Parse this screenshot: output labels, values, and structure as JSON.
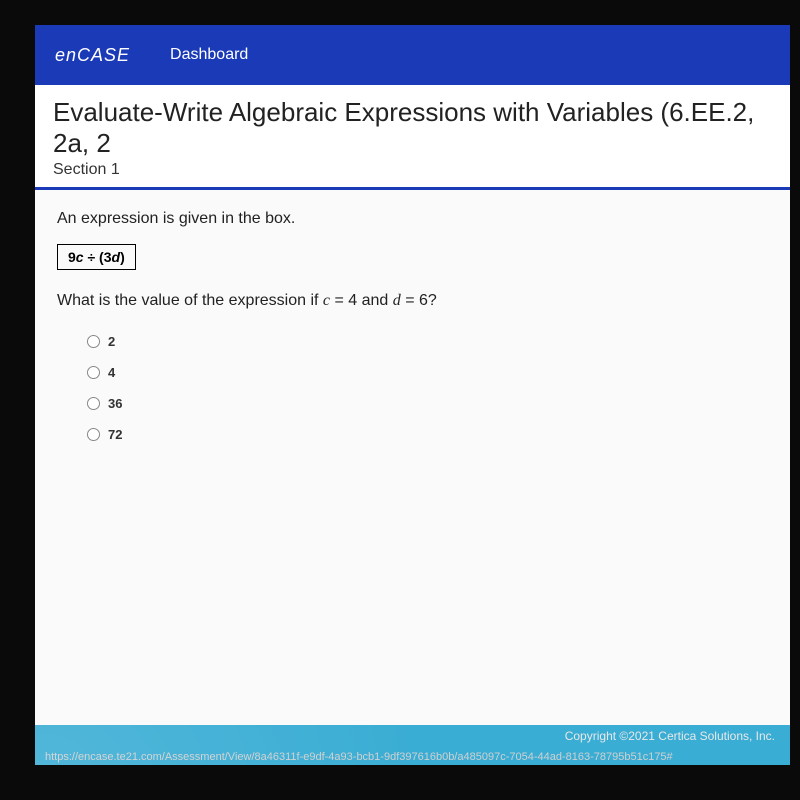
{
  "header": {
    "logo": "enCASE",
    "nav": "Dashboard"
  },
  "title": {
    "main": "Evaluate-Write Algebraic Expressions with Variables (6.EE.2, 2a, 2",
    "section": "Section 1"
  },
  "question": {
    "prompt": "An expression is given in the box.",
    "expression_prefix": "9",
    "expression_var1": "c",
    "expression_op": " ÷ (3",
    "expression_var2": "d",
    "expression_suffix": ")",
    "stem_prefix": "What is the value of the expression if ",
    "stem_c": "c",
    "stem_eq1": " = 4",
    "stem_and": " and ",
    "stem_d": "d",
    "stem_eq2": " = 6",
    "stem_suffix": "?"
  },
  "options": [
    {
      "label": "2"
    },
    {
      "label": "4"
    },
    {
      "label": "36"
    },
    {
      "label": "72"
    }
  ],
  "footer": {
    "copyright": "Copyright ©2021 Certica Solutions, Inc.",
    "url": "https://encase.te21.com/Assessment/View/8a46311f-e9df-4a93-bcb1-9df397616b0b/a485097c-7054-44ad-8163-78795b51c175#"
  },
  "colors": {
    "header_bg": "#1a3ab8",
    "footer_bg": "#3aadd4",
    "page_bg": "#fafafa",
    "border_accent": "#1a3ab8"
  }
}
